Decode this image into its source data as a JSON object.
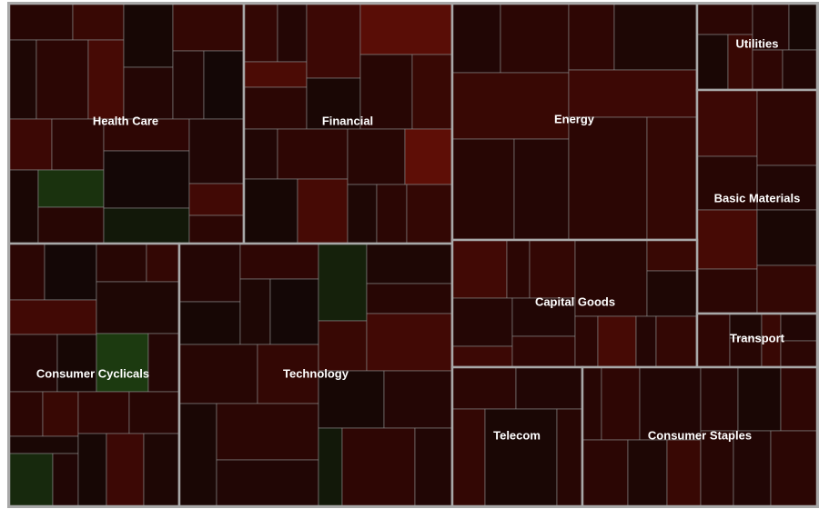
{
  "chart_data": {
    "type": "treemap",
    "title": "",
    "colors": {
      "background": "#ffffff",
      "sector_border": "#a8a8a8",
      "cell_border": "#8a8a8a",
      "label": "#ffffff",
      "strong_loss": "#5e0e06",
      "loss": "#2e0604",
      "flat": "#0d0706",
      "gain": "#1c3a10"
    },
    "sectors": [
      {
        "name": "Health Care",
        "changes": [
          -0.8,
          -1.2,
          -0.5,
          -0.9,
          -1.5,
          -0.3,
          -0.7,
          -1.1,
          -0.6,
          -0.2,
          -1.3,
          -0.9,
          -0.4,
          0.5,
          -0.8,
          -1.0,
          -0.2,
          0.2,
          -0.6,
          -1.4,
          -0.9
        ]
      },
      {
        "name": "Financial",
        "changes": [
          -1.1,
          -0.7,
          -1.6,
          -0.9,
          -1.3,
          -0.4,
          -1.9,
          -0.8,
          -1.2,
          -0.6,
          -1.0,
          -0.3,
          -1.5,
          -0.8,
          -2.1,
          -0.5,
          -0.9,
          -1.1
        ]
      },
      {
        "name": "Energy",
        "changes": [
          -0.6,
          -0.9,
          -1.2,
          -0.8,
          -0.7,
          -1.0,
          -0.5,
          -1.3,
          -0.9,
          -1.1
        ]
      },
      {
        "name": "Utilities",
        "changes": [
          -0.9,
          -0.4,
          -1.2,
          -0.7,
          -0.3,
          -1.0,
          -0.6
        ]
      },
      {
        "name": "Basic Materials",
        "changes": [
          -1.3,
          -0.8,
          -1.0,
          -0.6,
          -1.5,
          -0.9,
          -0.4,
          -1.1
        ]
      },
      {
        "name": "Consumer Cyclicals",
        "changes": [
          -0.9,
          -0.2,
          -1.4,
          -0.6,
          -0.3,
          -0.8,
          -1.1,
          -0.5,
          0.6,
          -0.7,
          -0.9,
          -1.2,
          -0.4,
          0.4,
          -0.6,
          -1.0,
          -0.8,
          -0.3,
          -1.3,
          -0.5
        ]
      },
      {
        "name": "Technology",
        "changes": [
          -0.7,
          -0.3,
          -1.0,
          -0.5,
          -0.2,
          -0.8,
          -1.1,
          -0.4,
          -0.9,
          -0.6,
          0.3,
          -1.2,
          -0.5,
          -0.8,
          -1.4,
          -0.3,
          -0.7,
          0.2,
          -1.0,
          -0.6
        ]
      },
      {
        "name": "Capital Goods",
        "changes": [
          -1.4,
          -0.9,
          -1.1,
          -0.7,
          -1.3,
          -0.6,
          -1.0,
          -0.8,
          -1.2,
          -0.5,
          -0.9,
          -1.5,
          -0.7,
          -1.1
        ]
      },
      {
        "name": "Transport",
        "changes": [
          -1.0,
          -0.5,
          -0.8,
          -1.2,
          -0.6,
          -0.9
        ]
      },
      {
        "name": "Telecom",
        "changes": [
          -0.9,
          -0.6,
          -1.1,
          -0.4,
          -0.8
        ]
      },
      {
        "name": "Consumer Staples",
        "changes": [
          -0.8,
          -1.0,
          -0.6,
          -0.9,
          -0.5,
          -1.2,
          -0.7,
          -0.4,
          -1.0,
          -0.8,
          -0.6,
          -0.9
        ]
      }
    ]
  }
}
